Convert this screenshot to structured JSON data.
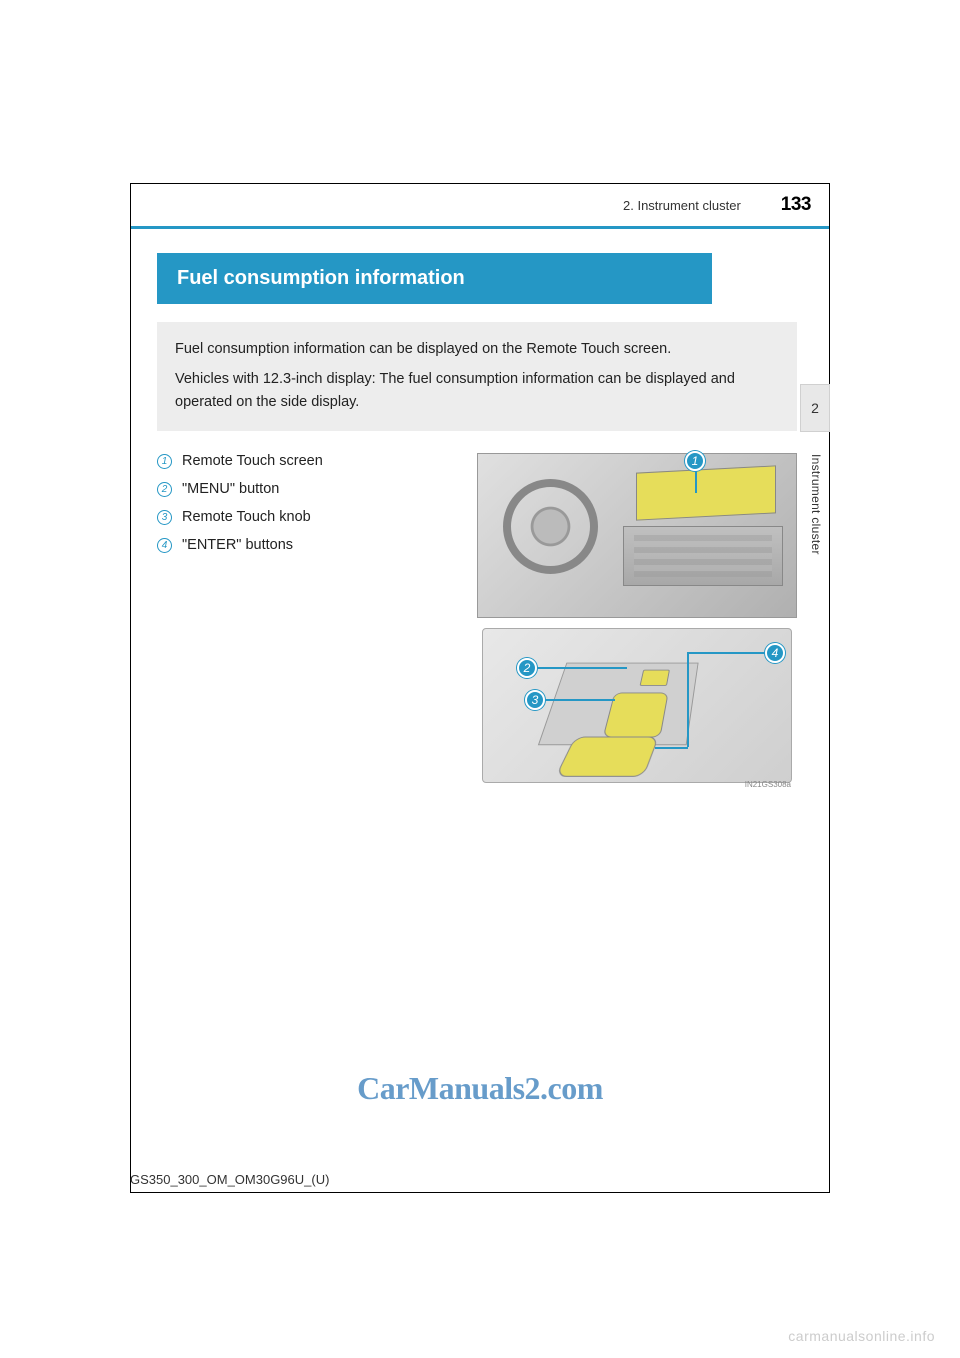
{
  "header": {
    "section_label": "2. Instrument cluster",
    "page_number": "133"
  },
  "title": "Fuel consumption information",
  "intro": {
    "p1": "Fuel consumption information can be displayed on the Remote Touch screen.",
    "p2": "Vehicles with 12.3-inch display: The fuel consumption information can be displayed and operated on the side display."
  },
  "items": [
    {
      "num": "1",
      "label": "Remote Touch screen"
    },
    {
      "num": "2",
      "label": "\"MENU\" button"
    },
    {
      "num": "3",
      "label": "Remote Touch knob"
    },
    {
      "num": "4",
      "label": "\"ENTER\" buttons"
    }
  ],
  "diagram": {
    "callouts": {
      "c1": "1",
      "c2": "2",
      "c3": "3",
      "c4": "4"
    },
    "image_code": "IN21GS308a"
  },
  "side_tab": {
    "number": "2",
    "label": "Instrument cluster"
  },
  "watermark": "CarManuals2.com",
  "doc_code": "GS350_300_OM_OM30G96U_(U)",
  "footer_watermark": "carmanualsonline.info",
  "colors": {
    "accent_blue": "#2597c5",
    "intro_bg": "#ededed",
    "highlight_yellow": "#e6dd5a",
    "watermark_blue": "#5f97c8",
    "footer_gray": "#cccccc"
  }
}
